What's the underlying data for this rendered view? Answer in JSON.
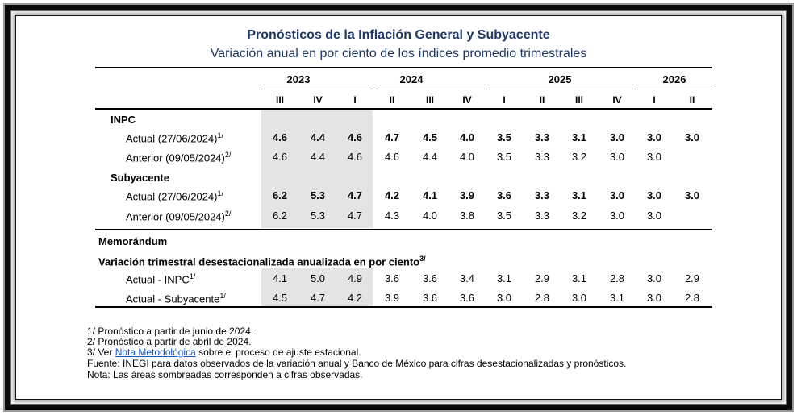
{
  "title": "Pronósticos de la Inflación General y Subyacente",
  "subtitle": "Variación anual en por ciento de los índices promedio trimestrales",
  "years": [
    "2023",
    "2024",
    "2025",
    "2026"
  ],
  "quarters": [
    "III",
    "IV",
    "I",
    "II",
    "III",
    "IV",
    "I",
    "II",
    "III",
    "IV",
    "I",
    "II"
  ],
  "sections": {
    "inpc": "INPC",
    "subyacente": "Subyacente",
    "memorandum": "Memorándum",
    "variacion": "Variación trimestral desestacionalizada anualizada en por ciento",
    "variacion_sup": "3/"
  },
  "rows": [
    {
      "label": "Actual (27/06/2024)",
      "sup": "1/",
      "values": [
        "4.6",
        "4.4",
        "4.6",
        "4.7",
        "4.5",
        "4.0",
        "3.5",
        "3.3",
        "3.1",
        "3.0",
        "3.0",
        "3.0"
      ]
    },
    {
      "label": "Anterior (09/05/2024)",
      "sup": "2/",
      "values": [
        "4.6",
        "4.4",
        "4.6",
        "4.6",
        "4.4",
        "4.0",
        "3.5",
        "3.3",
        "3.2",
        "3.0",
        "3.0",
        ""
      ]
    },
    {
      "label": "Actual (27/06/2024)",
      "sup": "1/",
      "values": [
        "6.2",
        "5.3",
        "4.7",
        "4.2",
        "4.1",
        "3.9",
        "3.6",
        "3.3",
        "3.1",
        "3.0",
        "3.0",
        "3.0"
      ]
    },
    {
      "label": "Anterior (09/05/2024)",
      "sup": "2/",
      "values": [
        "6.2",
        "5.3",
        "4.7",
        "4.3",
        "4.0",
        "3.8",
        "3.5",
        "3.3",
        "3.2",
        "3.0",
        "3.0",
        ""
      ]
    },
    {
      "label": "Actual - INPC",
      "sup": "1/",
      "values": [
        "4.1",
        "5.0",
        "4.9",
        "3.6",
        "3.6",
        "3.4",
        "3.1",
        "2.9",
        "3.1",
        "2.8",
        "3.0",
        "2.9"
      ]
    },
    {
      "label": "Actual - Subyacente",
      "sup": "1/",
      "values": [
        "4.5",
        "4.7",
        "4.2",
        "3.9",
        "3.6",
        "3.6",
        "3.0",
        "2.8",
        "3.0",
        "3.1",
        "3.0",
        "2.8"
      ]
    }
  ],
  "notes": {
    "n1": "1/ Pronóstico a partir de junio de 2024.",
    "n2": "2/ Pronóstico a partir de abril de 2024.",
    "n3_pre": "3/ Ver",
    "n3_link": "Nota Metodológica",
    "n3_post": "sobre el proceso de ajuste estacional.",
    "n4": "Fuente: INEGI para datos observados de la variación anual y Banco de México para cifras desestacionalizadas y pronósticos.",
    "n5": "Nota: Las áreas sombreadas corresponden a cifras observadas."
  }
}
